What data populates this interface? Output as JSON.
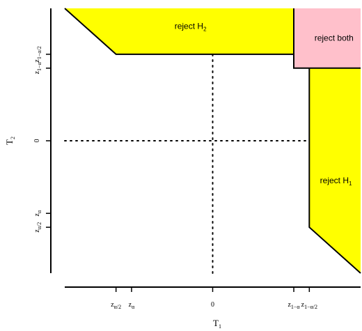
{
  "chart_data": {
    "type": "region",
    "xlabel": {
      "main": "T",
      "sub": "1"
    },
    "ylabel": {
      "main": "T",
      "sub": "2"
    },
    "xlim": [
      -3.0,
      3.0
    ],
    "ylim": [
      -3.0,
      3.0
    ],
    "critical_values": {
      "z_half_alpha": -1.96,
      "z_alpha": -1.645,
      "zero": 0,
      "z_one_minus_alpha": 1.645,
      "z_one_minus_half_alpha": 1.96
    },
    "x_ticks": [
      {
        "value": -1.96,
        "main": "z",
        "sub": "α/2"
      },
      {
        "value": -1.645,
        "main": "z",
        "sub": "α"
      },
      {
        "value": 0,
        "main": "0",
        "sub": ""
      },
      {
        "value": 1.645,
        "main": "z",
        "sub": "1−α"
      },
      {
        "value": 1.96,
        "main": "z",
        "sub": "1−α/2"
      }
    ],
    "y_ticks": [
      {
        "value": -1.96,
        "main": "z",
        "sub": "α/2"
      },
      {
        "value": -1.645,
        "main": "z",
        "sub": "α"
      },
      {
        "value": 0,
        "main": "0",
        "sub": ""
      },
      {
        "value": 1.645,
        "main": "z",
        "sub": "1−α"
      },
      {
        "value": 1.96,
        "main": "z",
        "sub": "1−α/2"
      }
    ],
    "regions": [
      {
        "name": "reject-h2-region",
        "label": {
          "main": "reject H",
          "sub": "2",
          "at": [
            -0.45,
            2.6
          ]
        },
        "color": "#ffff00",
        "polygon": [
          [
            -3.0,
            3.0
          ],
          [
            -1.96,
            1.96
          ],
          [
            1.645,
            1.96
          ],
          [
            1.645,
            3.0
          ]
        ]
      },
      {
        "name": "reject-both-region",
        "label": {
          "main": "reject both",
          "sub": "",
          "at": [
            2.46,
            2.33
          ]
        },
        "color": "#ffc0cb",
        "polygon": [
          [
            1.645,
            1.645
          ],
          [
            3.0,
            1.645
          ],
          [
            3.0,
            3.0
          ],
          [
            1.645,
            3.0
          ]
        ]
      },
      {
        "name": "reject-h1-region",
        "label": {
          "main": "reject H",
          "sub": "1",
          "at": [
            2.5,
            -0.9
          ]
        },
        "color": "#ffff00",
        "polygon": [
          [
            1.96,
            1.645
          ],
          [
            1.96,
            -1.96
          ],
          [
            3.0,
            -3.0
          ],
          [
            3.0,
            1.645
          ]
        ]
      }
    ],
    "reference_lines": [
      {
        "name": "horizontal-zero-line",
        "from": [
          -3.0,
          0
        ],
        "to": [
          1.96,
          0
        ],
        "style": "dotted"
      },
      {
        "name": "vertical-zero-line",
        "from": [
          0,
          -3.0
        ],
        "to": [
          0,
          1.96
        ],
        "style": "dotted"
      }
    ]
  }
}
